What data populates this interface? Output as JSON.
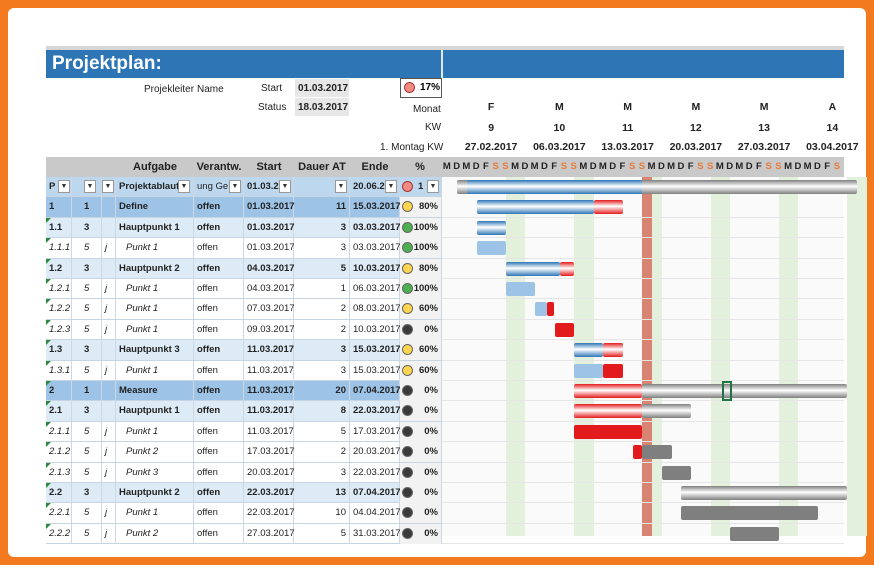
{
  "title": "Projektplan:",
  "info": {
    "leiter_label": "Projekleiter",
    "name_label": "Name",
    "start_label": "Start",
    "start_value": "01.03.2017",
    "status_label": "Status",
    "status_value": "18.03.2017",
    "progress": "17%",
    "monat_label": "Monat",
    "kw_label": "KW",
    "montag_label": "1. Montag KW"
  },
  "timeline": [
    {
      "month": "F",
      "kw": "9",
      "date": "27.02.2017"
    },
    {
      "month": "M",
      "kw": "10",
      "date": "06.03.2017"
    },
    {
      "month": "M",
      "kw": "11",
      "date": "13.03.2017"
    },
    {
      "month": "M",
      "kw": "12",
      "date": "20.03.2017"
    },
    {
      "month": "M",
      "kw": "13",
      "date": "27.03.2017"
    },
    {
      "month": "A",
      "kw": "14",
      "date": "03.04.2017"
    }
  ],
  "day_letters": [
    "M",
    "D",
    "M",
    "D",
    "F",
    "S",
    "S",
    "M",
    "D",
    "M",
    "D",
    "F",
    "S",
    "S",
    "M",
    "D",
    "M",
    "D",
    "F",
    "S",
    "S",
    "M",
    "D",
    "M",
    "D",
    "F",
    "S",
    "S",
    "M",
    "D",
    "M",
    "D",
    "F",
    "S",
    "S",
    "M",
    "D",
    "M",
    "D",
    "F",
    "S",
    "S"
  ],
  "headers": {
    "aufgabe": "Aufgabe",
    "verantw": "Verantw.",
    "start": "Start",
    "dauer": "Dauer AT",
    "ende": "Ende",
    "pct": "%"
  },
  "filter_row": {
    "p": "P",
    "task": "Projektablauf",
    "verantw": "ung Ge",
    "start": "01.03.2",
    "ende": "20.06.2",
    "pct": "1"
  },
  "rows": [
    {
      "id": "1",
      "lvl": "1",
      "j": "",
      "task": "Define",
      "verantw": "offen",
      "start": "01.03.2017",
      "dauer": "11",
      "ende": "15.03.2017",
      "status": "yellow",
      "pct": "80%",
      "type": "main"
    },
    {
      "id": "1.1",
      "lvl": "3",
      "j": "",
      "task": "Hauptpunkt 1",
      "verantw": "offen",
      "start": "01.03.2017",
      "dauer": "3",
      "ende": "03.03.2017",
      "status": "green",
      "pct": "100%",
      "type": "hp"
    },
    {
      "id": "1.1.1",
      "lvl": "5",
      "j": "j",
      "task": "Punkt 1",
      "verantw": "offen",
      "start": "01.03.2017",
      "dauer": "3",
      "ende": "03.03.2017",
      "status": "green",
      "pct": "100%",
      "type": "p"
    },
    {
      "id": "1.2",
      "lvl": "3",
      "j": "",
      "task": "Hauptpunkt 2",
      "verantw": "offen",
      "start": "04.03.2017",
      "dauer": "5",
      "ende": "10.03.2017",
      "status": "yellow",
      "pct": "80%",
      "type": "hp"
    },
    {
      "id": "1.2.1",
      "lvl": "5",
      "j": "j",
      "task": "Punkt 1",
      "verantw": "offen",
      "start": "04.03.2017",
      "dauer": "1",
      "ende": "06.03.2017",
      "status": "green",
      "pct": "100%",
      "type": "p"
    },
    {
      "id": "1.2.2",
      "lvl": "5",
      "j": "j",
      "task": "Punkt 1",
      "verantw": "offen",
      "start": "07.03.2017",
      "dauer": "2",
      "ende": "08.03.2017",
      "status": "yellow",
      "pct": "60%",
      "type": "p"
    },
    {
      "id": "1.2.3",
      "lvl": "5",
      "j": "j",
      "task": "Punkt 1",
      "verantw": "offen",
      "start": "09.03.2017",
      "dauer": "2",
      "ende": "10.03.2017",
      "status": "black",
      "pct": "0%",
      "type": "p"
    },
    {
      "id": "1.3",
      "lvl": "3",
      "j": "",
      "task": "Hauptpunkt 3",
      "verantw": "offen",
      "start": "11.03.2017",
      "dauer": "3",
      "ende": "15.03.2017",
      "status": "yellow",
      "pct": "60%",
      "type": "hp"
    },
    {
      "id": "1.3.1",
      "lvl": "5",
      "j": "j",
      "task": "Punkt 1",
      "verantw": "offen",
      "start": "11.03.2017",
      "dauer": "3",
      "ende": "15.03.2017",
      "status": "yellow",
      "pct": "60%",
      "type": "p"
    },
    {
      "id": "2",
      "lvl": "1",
      "j": "",
      "task": "Measure",
      "verantw": "offen",
      "start": "11.03.2017",
      "dauer": "20",
      "ende": "07.04.2017",
      "status": "black",
      "pct": "0%",
      "type": "main"
    },
    {
      "id": "2.1",
      "lvl": "3",
      "j": "",
      "task": "Hauptpunkt 1",
      "verantw": "offen",
      "start": "11.03.2017",
      "dauer": "8",
      "ende": "22.03.2017",
      "status": "black",
      "pct": "0%",
      "type": "hp"
    },
    {
      "id": "2.1.1",
      "lvl": "5",
      "j": "j",
      "task": "Punkt 1",
      "verantw": "offen",
      "start": "11.03.2017",
      "dauer": "5",
      "ende": "17.03.2017",
      "status": "black",
      "pct": "0%",
      "type": "p"
    },
    {
      "id": "2.1.2",
      "lvl": "5",
      "j": "j",
      "task": "Punkt 2",
      "verantw": "offen",
      "start": "17.03.2017",
      "dauer": "2",
      "ende": "20.03.2017",
      "status": "black",
      "pct": "0%",
      "type": "p"
    },
    {
      "id": "2.1.3",
      "lvl": "5",
      "j": "j",
      "task": "Punkt 3",
      "verantw": "offen",
      "start": "20.03.2017",
      "dauer": "3",
      "ende": "22.03.2017",
      "status": "black",
      "pct": "0%",
      "type": "p"
    },
    {
      "id": "2.2",
      "lvl": "3",
      "j": "",
      "task": "Hauptpunkt 2",
      "verantw": "offen",
      "start": "22.03.2017",
      "dauer": "13",
      "ende": "07.04.2017",
      "status": "black",
      "pct": "0%",
      "type": "hp"
    },
    {
      "id": "2.2.1",
      "lvl": "5",
      "j": "j",
      "task": "Punkt 1",
      "verantw": "offen",
      "start": "22.03.2017",
      "dauer": "10",
      "ende": "04.04.2017",
      "status": "black",
      "pct": "0%",
      "type": "p"
    },
    {
      "id": "2.2.2",
      "lvl": "5",
      "j": "j",
      "task": "Punkt 2",
      "verantw": "offen",
      "start": "27.03.2017",
      "dauer": "5",
      "ende": "31.03.2017",
      "status": "black",
      "pct": "0%",
      "type": "p"
    }
  ],
  "colors": {
    "title_bar": "#2e75b6",
    "main_row": "#9dc3e6",
    "hp_row": "#ddebf7",
    "done": "#2e75b6",
    "late": "#e31a1c",
    "future": "#7f7f7f",
    "today": "#d6604f",
    "weekend": "#e3f0dc"
  }
}
